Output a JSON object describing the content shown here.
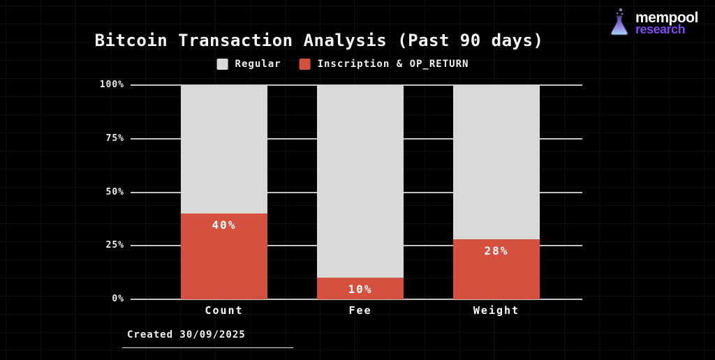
{
  "brand": {
    "name_line1": "mempool",
    "name_line2": "research",
    "accent_color": "#7e4bf0"
  },
  "chart_data": {
    "type": "bar",
    "stacked": true,
    "title": "Bitcoin Transaction Analysis (Past 90 days)",
    "categories": [
      "Count",
      "Fee",
      "Weight"
    ],
    "series": [
      {
        "name": "Regular",
        "color": "#d9d9d9",
        "values": [
          60,
          90,
          72
        ]
      },
      {
        "name": "Inscription & OP_RETURN",
        "color": "#d5503e",
        "values": [
          40,
          10,
          28
        ]
      }
    ],
    "bar_labels": [
      "40%",
      "10%",
      "28%"
    ],
    "ytick_labels": [
      "0%",
      "25%",
      "50%",
      "75%",
      "100%"
    ],
    "ytick_values": [
      0,
      25,
      50,
      75,
      100
    ],
    "ylim": [
      0,
      100
    ],
    "grid": true,
    "legend_position": "top",
    "background_color": "#000000",
    "text_color": "#ffffff"
  },
  "legend": {
    "items": [
      {
        "label": "Regular",
        "color": "#d9d9d9"
      },
      {
        "label": "Inscription & OP_RETURN",
        "color": "#d5503e"
      }
    ]
  },
  "footer": {
    "created": "Created 30/09/2025"
  }
}
